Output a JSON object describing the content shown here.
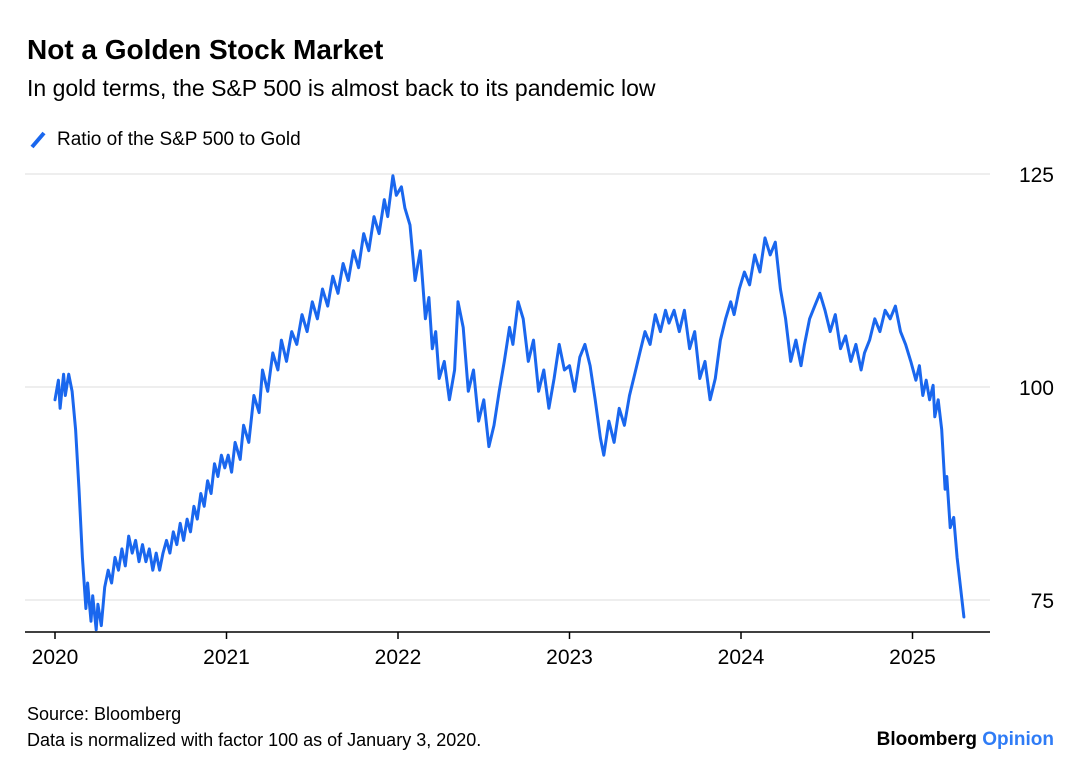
{
  "header": {
    "title": "Not a Golden Stock Market",
    "subtitle": "In gold terms, the S&P 500 is almost back to its pandemic low"
  },
  "legend": {
    "series_label": "Ratio of the S&P 500 to Gold"
  },
  "icons": {
    "legend_swatch": "diagonal-line-swatch"
  },
  "footer": {
    "source": "Source: Bloomberg",
    "note": "Data is normalized with factor 100 as of January 3, 2020."
  },
  "branding": {
    "brand": "Bloomberg",
    "product": "Opinion"
  },
  "colors": {
    "line": "#1a67ee",
    "grid": "#dcdcdc",
    "axis": "#000000",
    "text": "#000000",
    "brand_blue": "#2f7cf6"
  },
  "chart_data": {
    "type": "line",
    "title": "Not a Golden Stock Market",
    "xlabel": "",
    "ylabel": "",
    "grid": "horizontal",
    "legend_position": "top-left",
    "x_domain": [
      2020,
      2025.45
    ],
    "y_domain": [
      71,
      127
    ],
    "x_ticks": [
      2020,
      2021,
      2022,
      2023,
      2024,
      2025
    ],
    "x_tick_labels": [
      "2020",
      "2021",
      "2022",
      "2023",
      "2024",
      "2025"
    ],
    "y_ticks": [
      75,
      100,
      125
    ],
    "y_tick_labels": [
      "75",
      "100",
      "125"
    ],
    "series": [
      {
        "name": "Ratio of the S&P 500 to Gold",
        "points": [
          [
            2020.0,
            98.5
          ],
          [
            2020.02,
            100.8
          ],
          [
            2020.03,
            97.5
          ],
          [
            2020.05,
            101.5
          ],
          [
            2020.06,
            99.0
          ],
          [
            2020.08,
            101.5
          ],
          [
            2020.1,
            99.5
          ],
          [
            2020.12,
            95.0
          ],
          [
            2020.14,
            88.0
          ],
          [
            2020.16,
            80.0
          ],
          [
            2020.18,
            74.0
          ],
          [
            2020.19,
            77.0
          ],
          [
            2020.21,
            72.5
          ],
          [
            2020.22,
            75.5
          ],
          [
            2020.24,
            71.5
          ],
          [
            2020.25,
            74.5
          ],
          [
            2020.27,
            72.0
          ],
          [
            2020.29,
            76.5
          ],
          [
            2020.31,
            78.5
          ],
          [
            2020.33,
            77.0
          ],
          [
            2020.35,
            80.0
          ],
          [
            2020.37,
            78.5
          ],
          [
            2020.39,
            81.0
          ],
          [
            2020.41,
            79.0
          ],
          [
            2020.43,
            82.5
          ],
          [
            2020.45,
            80.5
          ],
          [
            2020.47,
            82.0
          ],
          [
            2020.49,
            79.5
          ],
          [
            2020.51,
            81.5
          ],
          [
            2020.53,
            79.5
          ],
          [
            2020.55,
            81.0
          ],
          [
            2020.57,
            78.5
          ],
          [
            2020.59,
            80.5
          ],
          [
            2020.61,
            78.5
          ],
          [
            2020.63,
            80.5
          ],
          [
            2020.65,
            82.0
          ],
          [
            2020.67,
            80.5
          ],
          [
            2020.69,
            83.0
          ],
          [
            2020.71,
            81.5
          ],
          [
            2020.73,
            84.0
          ],
          [
            2020.75,
            82.0
          ],
          [
            2020.77,
            84.5
          ],
          [
            2020.79,
            83.0
          ],
          [
            2020.81,
            86.0
          ],
          [
            2020.83,
            84.5
          ],
          [
            2020.85,
            87.5
          ],
          [
            2020.87,
            86.0
          ],
          [
            2020.89,
            89.0
          ],
          [
            2020.91,
            87.5
          ],
          [
            2020.93,
            91.0
          ],
          [
            2020.95,
            89.5
          ],
          [
            2020.97,
            92.0
          ],
          [
            2020.99,
            90.5
          ],
          [
            2021.01,
            92.0
          ],
          [
            2021.03,
            90.0
          ],
          [
            2021.05,
            93.5
          ],
          [
            2021.08,
            91.5
          ],
          [
            2021.1,
            95.5
          ],
          [
            2021.13,
            93.5
          ],
          [
            2021.16,
            99.0
          ],
          [
            2021.19,
            97.0
          ],
          [
            2021.21,
            102.0
          ],
          [
            2021.24,
            99.5
          ],
          [
            2021.27,
            104.0
          ],
          [
            2021.3,
            102.0
          ],
          [
            2021.32,
            105.5
          ],
          [
            2021.35,
            103.0
          ],
          [
            2021.38,
            106.5
          ],
          [
            2021.41,
            105.0
          ],
          [
            2021.44,
            108.5
          ],
          [
            2021.47,
            106.5
          ],
          [
            2021.5,
            110.0
          ],
          [
            2021.53,
            108.0
          ],
          [
            2021.56,
            111.5
          ],
          [
            2021.59,
            109.5
          ],
          [
            2021.62,
            113.0
          ],
          [
            2021.65,
            111.0
          ],
          [
            2021.68,
            114.5
          ],
          [
            2021.71,
            112.5
          ],
          [
            2021.74,
            116.0
          ],
          [
            2021.77,
            114.0
          ],
          [
            2021.8,
            118.0
          ],
          [
            2021.83,
            116.0
          ],
          [
            2021.86,
            120.0
          ],
          [
            2021.89,
            118.0
          ],
          [
            2021.92,
            122.0
          ],
          [
            2021.94,
            120.0
          ],
          [
            2021.97,
            124.8
          ],
          [
            2021.99,
            122.5
          ],
          [
            2022.02,
            123.5
          ],
          [
            2022.04,
            121.0
          ],
          [
            2022.07,
            119.0
          ],
          [
            2022.1,
            112.5
          ],
          [
            2022.13,
            116.0
          ],
          [
            2022.16,
            108.0
          ],
          [
            2022.18,
            110.5
          ],
          [
            2022.2,
            104.5
          ],
          [
            2022.22,
            106.5
          ],
          [
            2022.24,
            101.0
          ],
          [
            2022.27,
            103.0
          ],
          [
            2022.3,
            98.5
          ],
          [
            2022.33,
            102.0
          ],
          [
            2022.35,
            110.0
          ],
          [
            2022.38,
            107.0
          ],
          [
            2022.41,
            99.5
          ],
          [
            2022.44,
            102.0
          ],
          [
            2022.47,
            96.0
          ],
          [
            2022.5,
            98.5
          ],
          [
            2022.53,
            93.0
          ],
          [
            2022.56,
            95.5
          ],
          [
            2022.59,
            99.5
          ],
          [
            2022.62,
            103.0
          ],
          [
            2022.65,
            107.0
          ],
          [
            2022.67,
            105.0
          ],
          [
            2022.7,
            110.0
          ],
          [
            2022.73,
            108.0
          ],
          [
            2022.76,
            103.0
          ],
          [
            2022.79,
            105.5
          ],
          [
            2022.82,
            99.5
          ],
          [
            2022.85,
            102.0
          ],
          [
            2022.88,
            97.5
          ],
          [
            2022.91,
            101.0
          ],
          [
            2022.94,
            105.0
          ],
          [
            2022.97,
            102.0
          ],
          [
            2023.0,
            102.5
          ],
          [
            2023.03,
            99.5
          ],
          [
            2023.06,
            103.5
          ],
          [
            2023.09,
            105.0
          ],
          [
            2023.12,
            102.5
          ],
          [
            2023.15,
            98.5
          ],
          [
            2023.18,
            94.0
          ],
          [
            2023.2,
            92.0
          ],
          [
            2023.23,
            96.0
          ],
          [
            2023.26,
            93.5
          ],
          [
            2023.29,
            97.5
          ],
          [
            2023.32,
            95.5
          ],
          [
            2023.35,
            99.0
          ],
          [
            2023.38,
            101.5
          ],
          [
            2023.41,
            104.0
          ],
          [
            2023.44,
            106.5
          ],
          [
            2023.47,
            105.0
          ],
          [
            2023.5,
            108.5
          ],
          [
            2023.53,
            106.5
          ],
          [
            2023.56,
            109.0
          ],
          [
            2023.58,
            107.5
          ],
          [
            2023.61,
            109.0
          ],
          [
            2023.64,
            106.5
          ],
          [
            2023.67,
            109.0
          ],
          [
            2023.7,
            104.5
          ],
          [
            2023.73,
            106.5
          ],
          [
            2023.76,
            101.0
          ],
          [
            2023.79,
            103.0
          ],
          [
            2023.82,
            98.5
          ],
          [
            2023.85,
            101.0
          ],
          [
            2023.88,
            105.5
          ],
          [
            2023.91,
            108.0
          ],
          [
            2023.94,
            110.0
          ],
          [
            2023.96,
            108.5
          ],
          [
            2023.99,
            111.5
          ],
          [
            2024.02,
            113.5
          ],
          [
            2024.05,
            112.0
          ],
          [
            2024.08,
            115.5
          ],
          [
            2024.11,
            113.5
          ],
          [
            2024.14,
            117.5
          ],
          [
            2024.17,
            115.5
          ],
          [
            2024.2,
            117.0
          ],
          [
            2024.23,
            111.5
          ],
          [
            2024.26,
            108.0
          ],
          [
            2024.29,
            103.0
          ],
          [
            2024.32,
            105.5
          ],
          [
            2024.35,
            102.5
          ],
          [
            2024.37,
            105.0
          ],
          [
            2024.4,
            108.0
          ],
          [
            2024.43,
            109.5
          ],
          [
            2024.46,
            111.0
          ],
          [
            2024.49,
            109.0
          ],
          [
            2024.52,
            106.5
          ],
          [
            2024.55,
            108.5
          ],
          [
            2024.58,
            104.5
          ],
          [
            2024.61,
            106.0
          ],
          [
            2024.64,
            103.0
          ],
          [
            2024.67,
            105.0
          ],
          [
            2024.7,
            102.0
          ],
          [
            2024.72,
            104.0
          ],
          [
            2024.75,
            105.5
          ],
          [
            2024.78,
            108.0
          ],
          [
            2024.81,
            106.5
          ],
          [
            2024.84,
            109.0
          ],
          [
            2024.87,
            108.0
          ],
          [
            2024.9,
            109.5
          ],
          [
            2024.93,
            106.5
          ],
          [
            2024.96,
            105.0
          ],
          [
            2024.99,
            103.0
          ],
          [
            2025.02,
            100.8
          ],
          [
            2025.04,
            102.5
          ],
          [
            2025.06,
            99.0
          ],
          [
            2025.08,
            100.8
          ],
          [
            2025.1,
            98.5
          ],
          [
            2025.12,
            100.2
          ],
          [
            2025.13,
            96.5
          ],
          [
            2025.15,
            98.5
          ],
          [
            2025.17,
            95.0
          ],
          [
            2025.19,
            88.0
          ],
          [
            2025.2,
            89.5
          ],
          [
            2025.22,
            83.5
          ],
          [
            2025.24,
            84.7
          ],
          [
            2025.26,
            80.0
          ],
          [
            2025.28,
            76.5
          ],
          [
            2025.3,
            73.0
          ]
        ]
      }
    ]
  }
}
